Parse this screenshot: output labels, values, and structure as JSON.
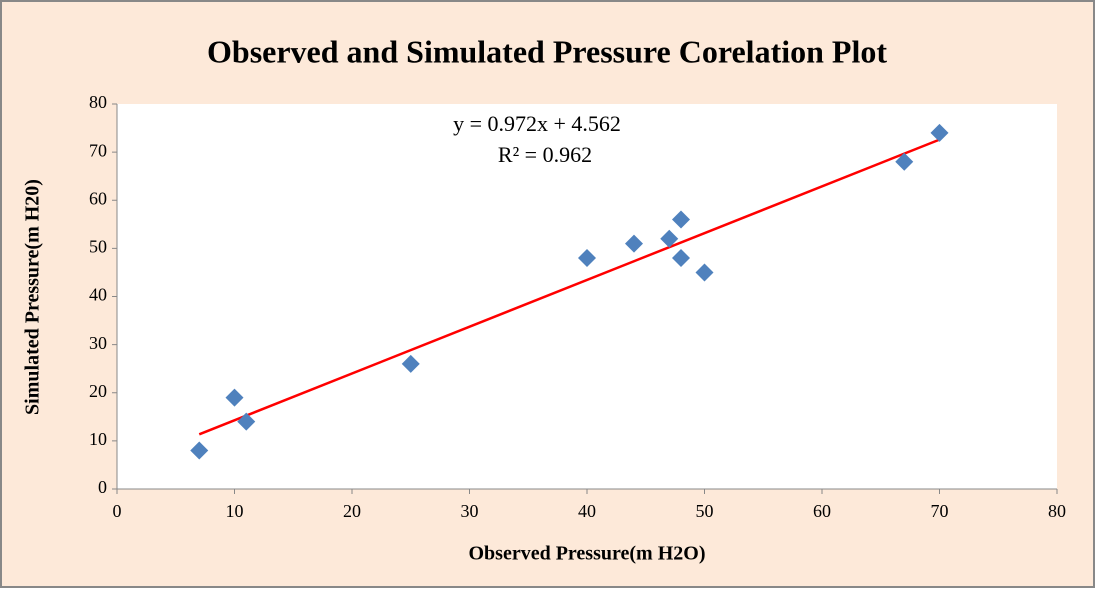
{
  "chart_data": {
    "type": "scatter",
    "title": "Observed and Simulated Pressure Corelation Plot",
    "x_label": "Observed Pressure(m H2O)",
    "y_label": "Simulated Pressure(m H20)",
    "series": [
      {
        "name": "Pressure",
        "color": "#4f81bd",
        "x": [
          7,
          10,
          11,
          25,
          40,
          44,
          47,
          48,
          48,
          50,
          67,
          70
        ],
        "values": [
          8,
          19,
          14,
          26,
          48,
          51,
          52,
          56,
          48,
          45,
          68,
          74
        ]
      }
    ],
    "trendline": {
      "color": "#ff0000",
      "x": [
        7,
        70
      ],
      "values": [
        11.366,
        72.602
      ]
    },
    "annotations": [
      "y = 0.972x + 4.562",
      "R² = 0.962"
    ],
    "xlim": [
      0,
      80
    ],
    "xticks": [
      0,
      10,
      20,
      30,
      40,
      50,
      60,
      70,
      80
    ],
    "ylim": [
      0,
      80
    ],
    "yticks": [
      0,
      10,
      20,
      30,
      40,
      50,
      60,
      70,
      80
    ],
    "grid": false
  }
}
